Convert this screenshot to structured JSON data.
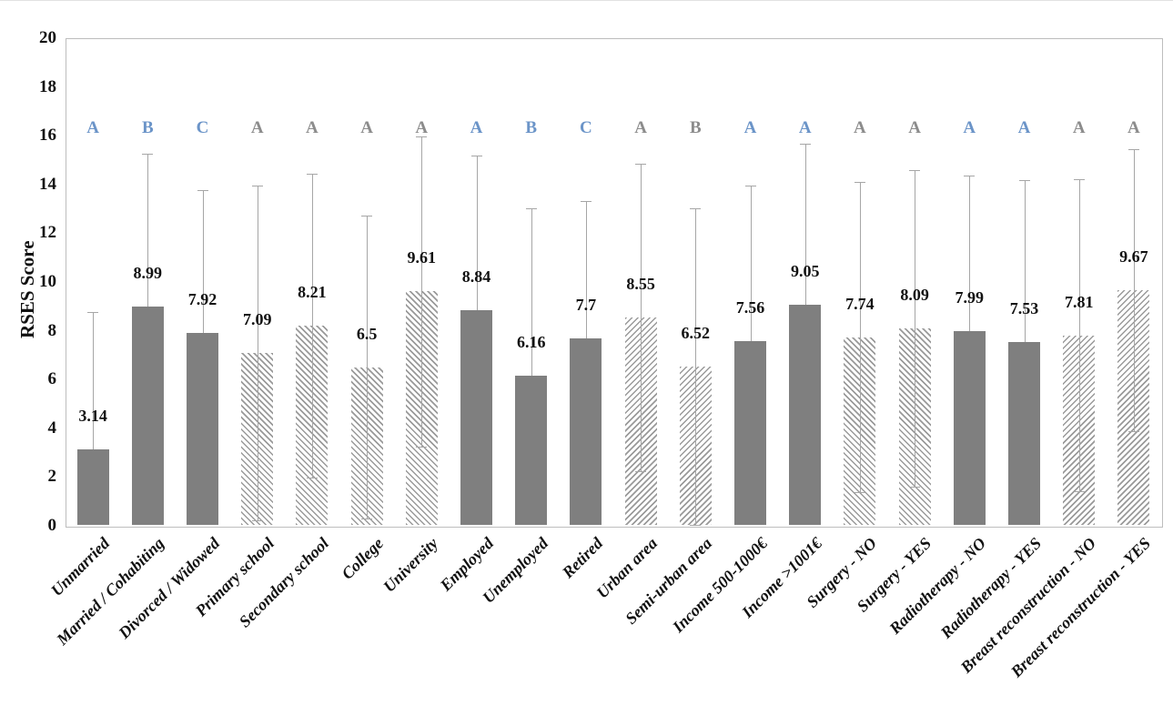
{
  "chart_data": {
    "type": "bar",
    "title": "",
    "xlabel": "",
    "ylabel": "RSES Score",
    "ylim": [
      0,
      20
    ],
    "ytick_step": 2,
    "grid": false,
    "legend": false,
    "categories": [
      "Unmarried",
      "Married / Cohabiting",
      "Divorced / Widowed",
      "Primary school",
      "Secondary school",
      "College",
      "University",
      "Employed",
      "Unemployed",
      "Retired",
      "Urban area",
      "Semi-urban area",
      "Income 500-1000€",
      "Income >1001€",
      "Surgery - NO",
      "Surgery - YES",
      "Radiotherapy - NO",
      "Radiotherapy - YES",
      "Breast reconstruction - NO",
      "Breast reconstruction - YES"
    ],
    "values": [
      3.14,
      8.99,
      7.92,
      7.09,
      8.21,
      6.5,
      9.61,
      8.84,
      6.16,
      7.7,
      8.55,
      6.52,
      7.56,
      9.05,
      7.74,
      8.09,
      7.99,
      7.53,
      7.81,
      9.67
    ],
    "value_labels": [
      "3.14",
      "8.99",
      "7.92",
      "7.09",
      "8.21",
      "6.5",
      "9.61",
      "8.84",
      "6.16",
      "7.7",
      "8.55",
      "6.52",
      "7.56",
      "9.05",
      "7.74",
      "8.09",
      "7.99",
      "7.53",
      "7.81",
      "9.67"
    ],
    "error_upper": [
      8.77,
      15.26,
      13.77,
      13.96,
      14.44,
      12.72,
      15.97,
      15.19,
      13.02,
      13.32,
      14.85,
      13.02,
      13.96,
      15.67,
      14.1,
      14.59,
      14.36,
      14.18,
      14.22,
      15.45
    ],
    "error_lower": [
      null,
      null,
      null,
      0.22,
      1.98,
      0.28,
      3.25,
      null,
      null,
      null,
      2.25,
      0.02,
      null,
      null,
      1.38,
      1.59,
      null,
      null,
      1.4,
      3.89
    ],
    "letters": [
      "A",
      "B",
      "C",
      "A",
      "A",
      "A",
      "A",
      "A",
      "B",
      "C",
      "A",
      "B",
      "A",
      "A",
      "A",
      "A",
      "A",
      "A",
      "A",
      "A"
    ],
    "letter_colors": [
      "blue",
      "blue",
      "blue",
      "gray",
      "gray",
      "gray",
      "gray",
      "blue",
      "blue",
      "blue",
      "gray",
      "gray",
      "blue",
      "blue",
      "gray",
      "gray",
      "blue",
      "blue",
      "gray",
      "gray"
    ],
    "bar_styles": [
      "solid",
      "solid",
      "solid",
      "hatch-back",
      "hatch-back",
      "hatch-back",
      "hatch-back",
      "solid",
      "solid",
      "solid",
      "hatch-fwd",
      "hatch-fwd",
      "solid",
      "solid",
      "hatch-back",
      "hatch-back",
      "solid",
      "solid",
      "hatch-fwd",
      "hatch-fwd"
    ],
    "colors": {
      "bar": "#7f7f7f",
      "hatch": "#9a9a9a",
      "error": "#a6a6a6",
      "letter_blue": "#6b94c8",
      "letter_gray": "#8c8c8c",
      "axis_border": "#bdbdbd",
      "text": "#111111"
    }
  },
  "layout_text": {
    "yticks": [
      "0",
      "2",
      "4",
      "6",
      "8",
      "10",
      "12",
      "14",
      "16",
      "18",
      "20"
    ]
  }
}
